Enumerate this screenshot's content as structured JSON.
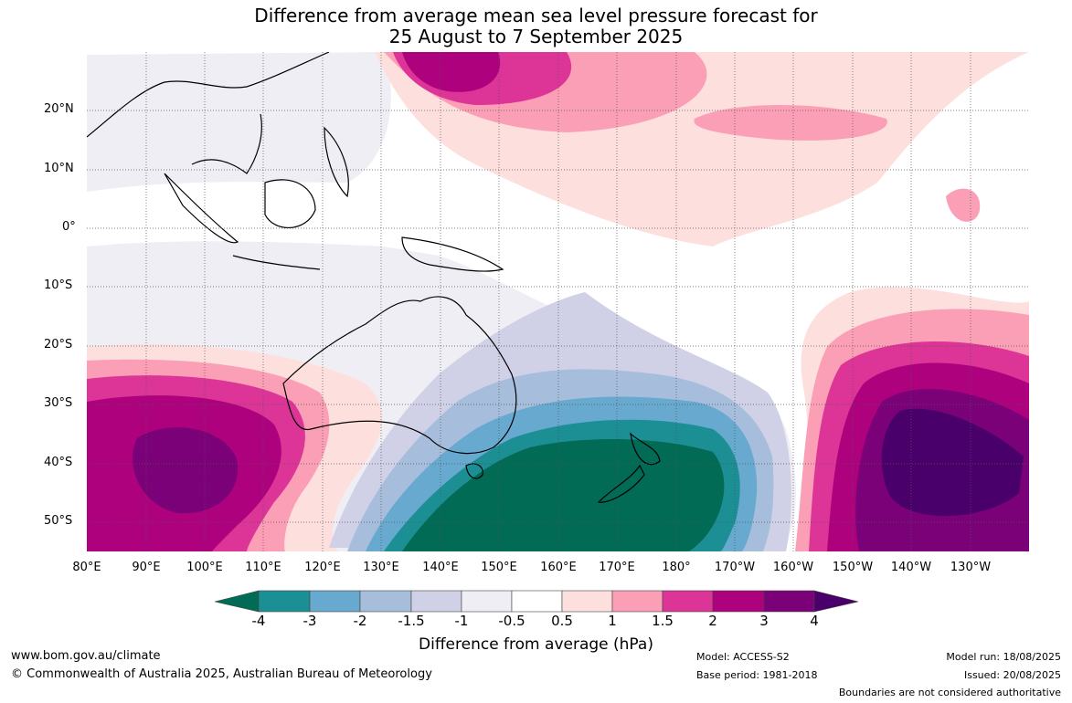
{
  "title_line1": "Difference from average mean sea level pressure forecast for",
  "title_line2": "25 August to 7 September 2025",
  "lat_labels": [
    "20°N",
    "10°N",
    "0°",
    "10°S",
    "20°S",
    "30°S",
    "40°S",
    "50°S"
  ],
  "lon_labels": [
    "80°E",
    "90°E",
    "100°E",
    "110°E",
    "120°E",
    "130°E",
    "140°E",
    "150°E",
    "160°E",
    "170°E",
    "180°",
    "170°W",
    "160°W",
    "150°W",
    "140°W",
    "130°W"
  ],
  "colorbar": {
    "labels": [
      "-4",
      "-3",
      "-2",
      "-1.5",
      "-1",
      "-0.5",
      "0.5",
      "1",
      "1.5",
      "2",
      "3",
      "4"
    ],
    "colors": [
      "#016b55",
      "#1c8f95",
      "#68a9cf",
      "#a6bddb",
      "#d0d1e6",
      "#f0eef5",
      "#ffffff",
      "#fde0dd",
      "#fa9fb5",
      "#dd3497",
      "#ae017e",
      "#7a0177",
      "#49006a"
    ],
    "title": "Difference from average (hPa)"
  },
  "footer": {
    "website": "www.bom.gov.au/climate",
    "copyright": "© Commonwealth of Australia 2025, Australian Bureau of Meteorology",
    "model": "Model: ACCESS-S2",
    "base_period": "Base period: 1981-2018",
    "model_run": "Model run: 18/08/2025",
    "issued": "Issued: 20/08/2025",
    "disclaimer": "Boundaries are not considered authoritative"
  }
}
